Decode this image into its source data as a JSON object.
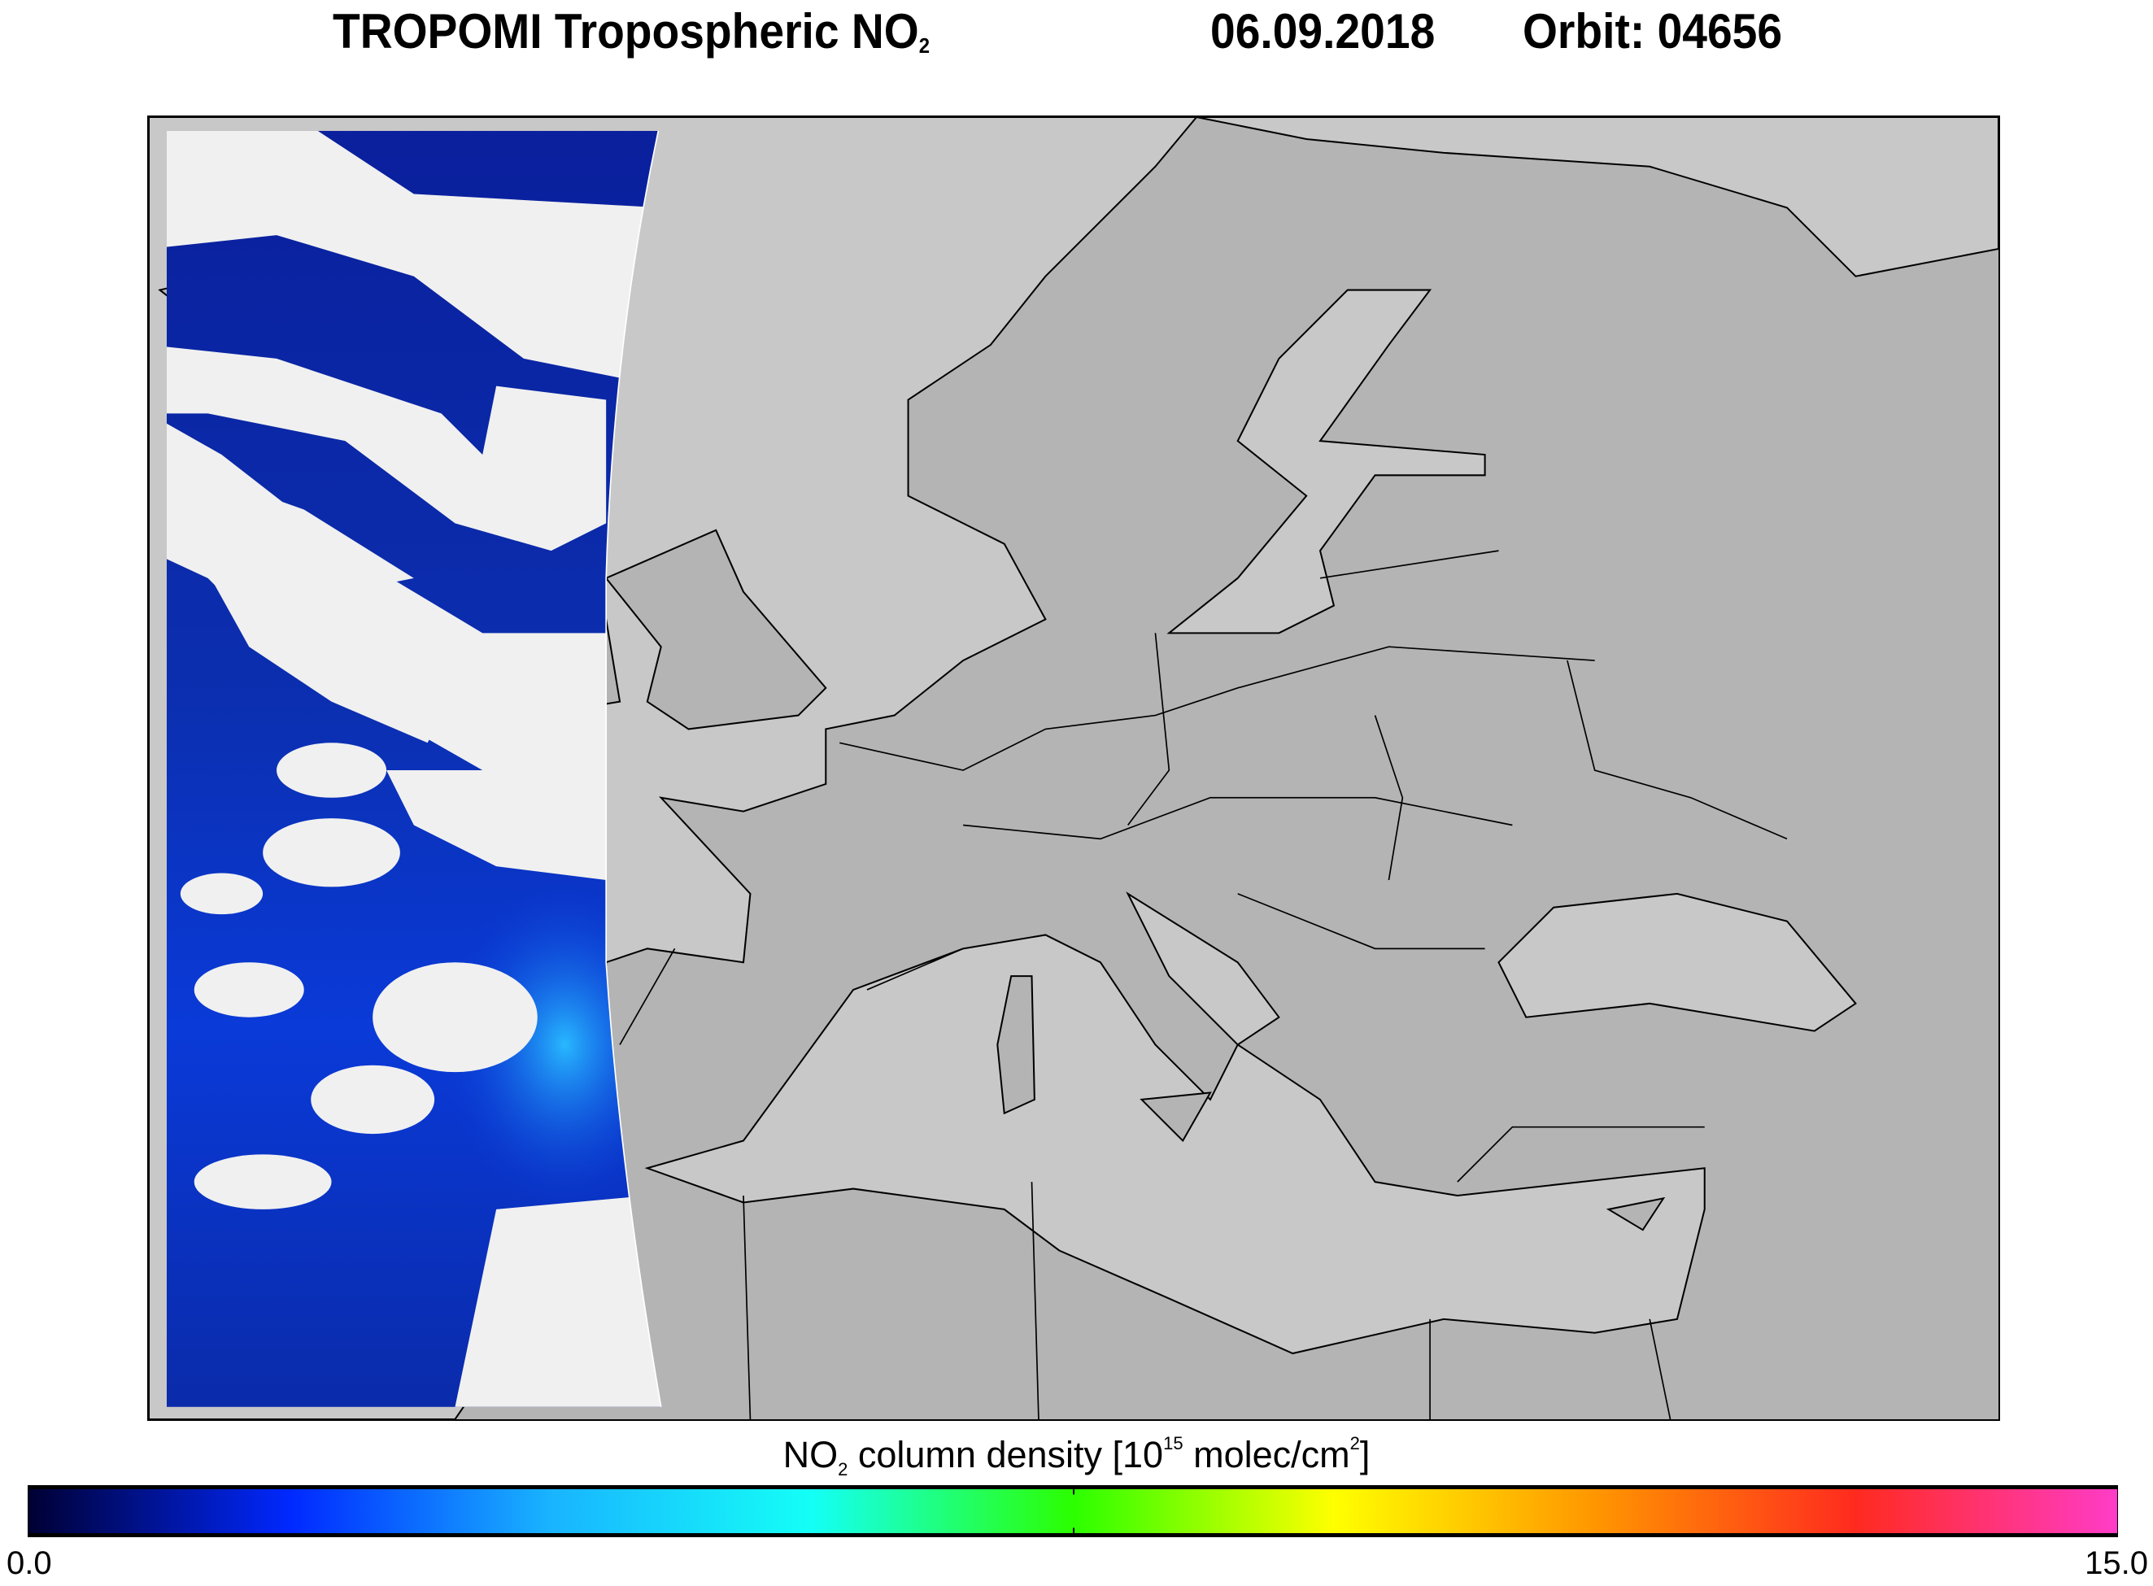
{
  "header": {
    "product": "TROPOMI Tropospheric NO",
    "product_subscript": "2",
    "date": "06.09.2018",
    "orbit": "Orbit: 04656"
  },
  "map": {
    "sea_color": "#c8c8c8",
    "land_color": "#b4b4b4",
    "cloud_color": "#f0f0f0",
    "coastline_color": "#000000"
  },
  "colorbar": {
    "label_prefix": "NO",
    "label_subscript": "2",
    "label_middle": " column density [10",
    "label_exponent": "15",
    "label_unit": " molec/cm",
    "label_unit_exponent": "2",
    "label_suffix": "]",
    "min_label": "0.0",
    "max_label": "15.0",
    "min": 0.0,
    "max": 15.0,
    "stops": [
      "#000033",
      "#0028ff",
      "#19b4ff",
      "#14fff7",
      "#2bff00",
      "#ffff00",
      "#ff9600",
      "#ff2a1f",
      "#ff3cc8"
    ]
  }
}
